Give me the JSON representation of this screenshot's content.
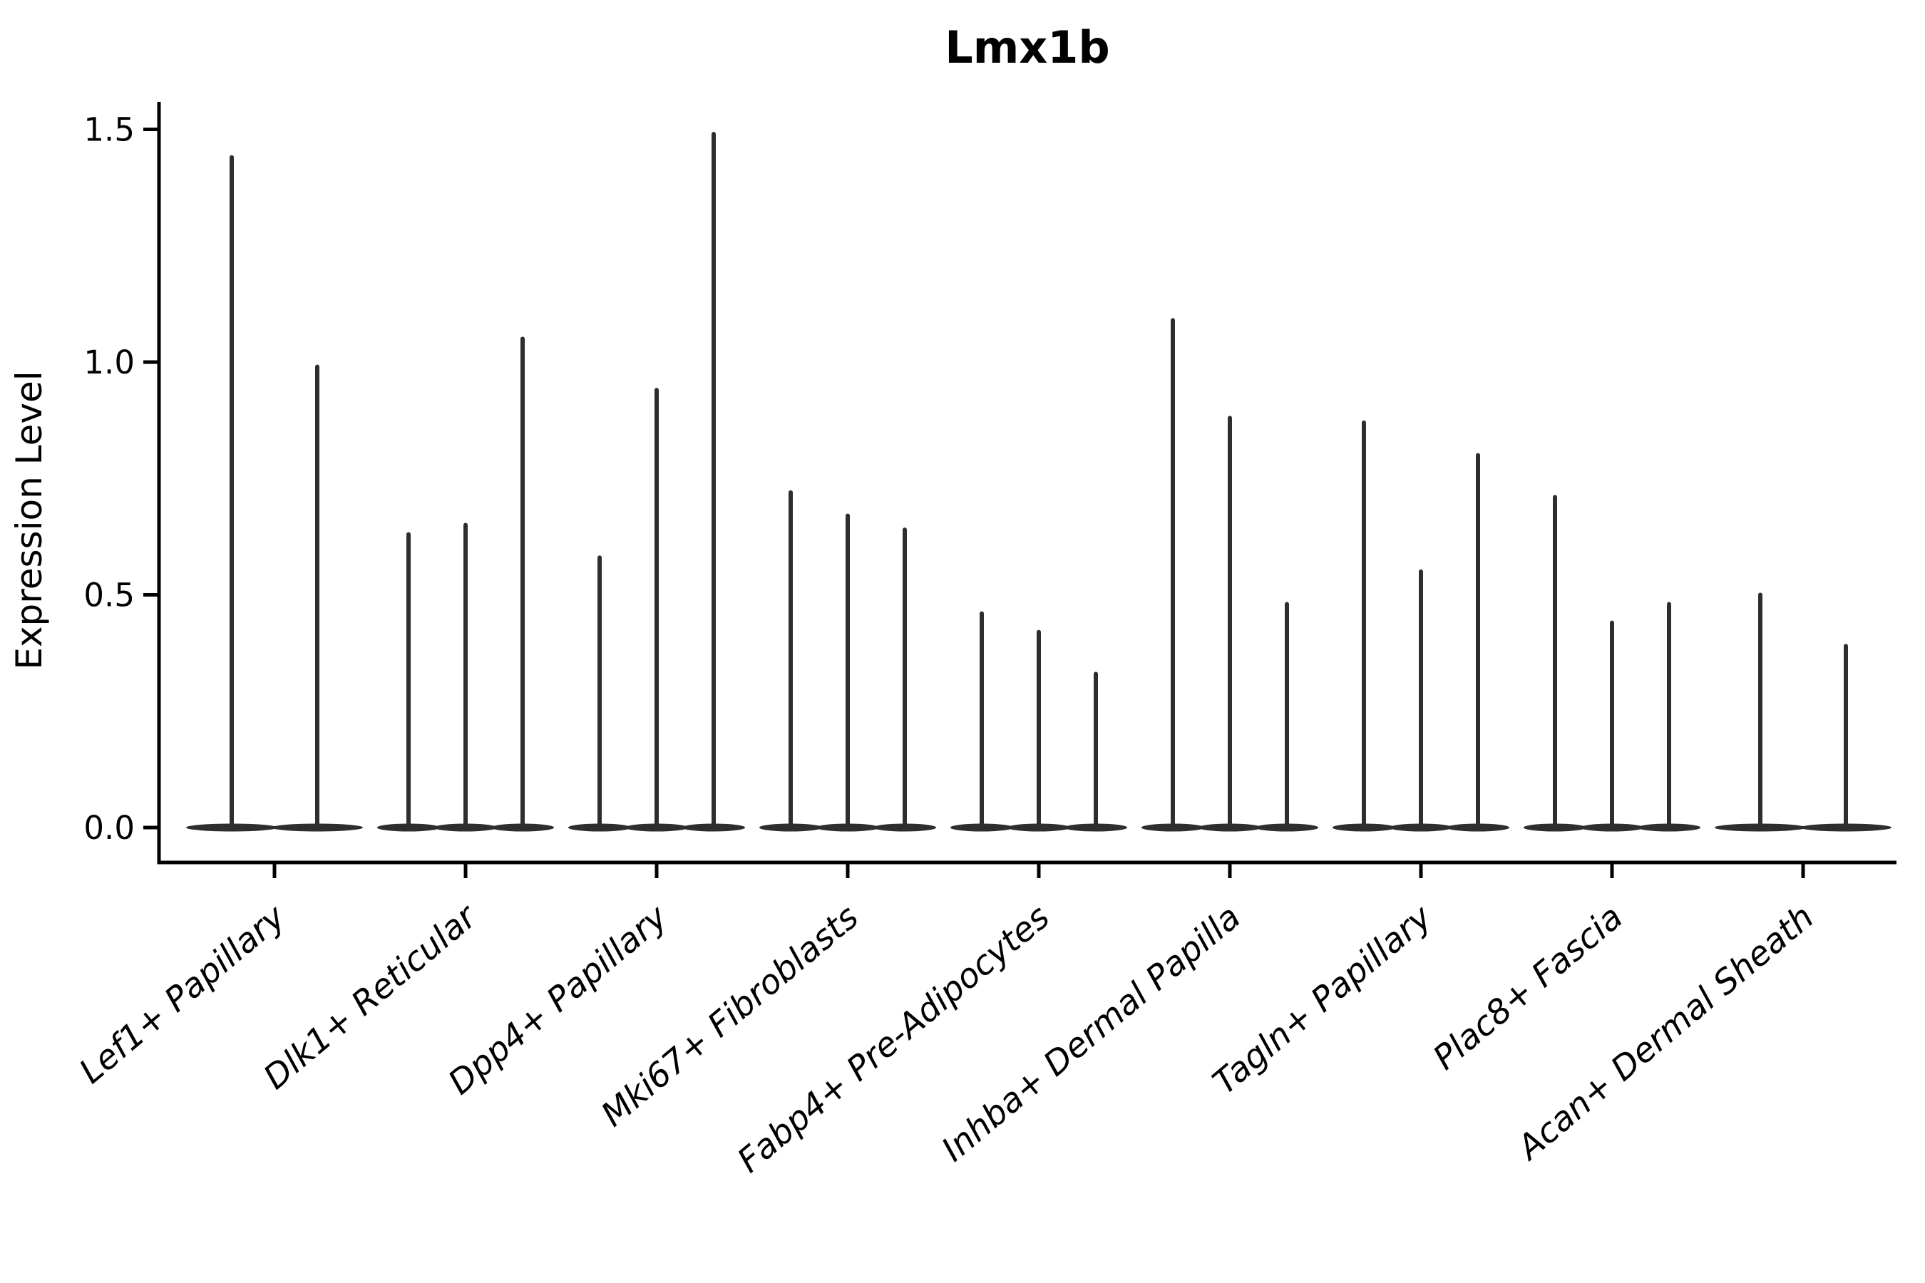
{
  "chart_data": {
    "type": "violin",
    "title": "Lmx1b",
    "xlabel": "",
    "ylabel": "Expression Level",
    "yticks": [
      "0.0",
      "0.5",
      "1.0",
      "1.5"
    ],
    "ytick_values": [
      0.0,
      0.5,
      1.0,
      1.5
    ],
    "ylim": [
      -0.08,
      1.56
    ],
    "grid": false,
    "legend": false,
    "violin_color": "#2e2e2e",
    "spine_color": "#000000",
    "baseline_value": 0.0,
    "note": "Each cell-type group contains thin sample violins: density mass concentrated at 0 (flat wide base) with a narrow spike up to the max expression value",
    "categories": [
      "Lef1+ Papillary",
      "Dlk1+ Reticular",
      "Dpp4+ Papillary",
      "Mki67+ Fibroblasts",
      "Fabp4+ Pre-Adipocytes",
      "Inhba+ Dermal Papilla",
      "Tagln+ Papillary",
      "Plac8+ Fascia",
      "Acan+ Dermal Sheath"
    ],
    "groups": [
      {
        "label": "Lef1+ Papillary",
        "violin_peaks": [
          1.44,
          0.99
        ]
      },
      {
        "label": "Dlk1+ Reticular",
        "violin_peaks": [
          0.63,
          0.65,
          1.05
        ]
      },
      {
        "label": "Dpp4+ Papillary",
        "violin_peaks": [
          0.58,
          0.94,
          1.49
        ]
      },
      {
        "label": "Mki67+ Fibroblasts",
        "violin_peaks": [
          0.72,
          0.67,
          0.64
        ]
      },
      {
        "label": "Fabp4+ Pre-Adipocytes",
        "violin_peaks": [
          0.46,
          0.42,
          0.33
        ]
      },
      {
        "label": "Inhba+ Dermal Papilla",
        "violin_peaks": [
          1.09,
          0.88,
          0.48
        ]
      },
      {
        "label": "Tagln+ Papillary",
        "violin_peaks": [
          0.87,
          0.55,
          0.8
        ]
      },
      {
        "label": "Plac8+ Fascia",
        "violin_peaks": [
          0.71,
          0.44,
          0.48
        ]
      },
      {
        "label": "Acan+ Dermal Sheath",
        "violin_peaks": [
          0.5,
          0.39
        ]
      }
    ]
  }
}
